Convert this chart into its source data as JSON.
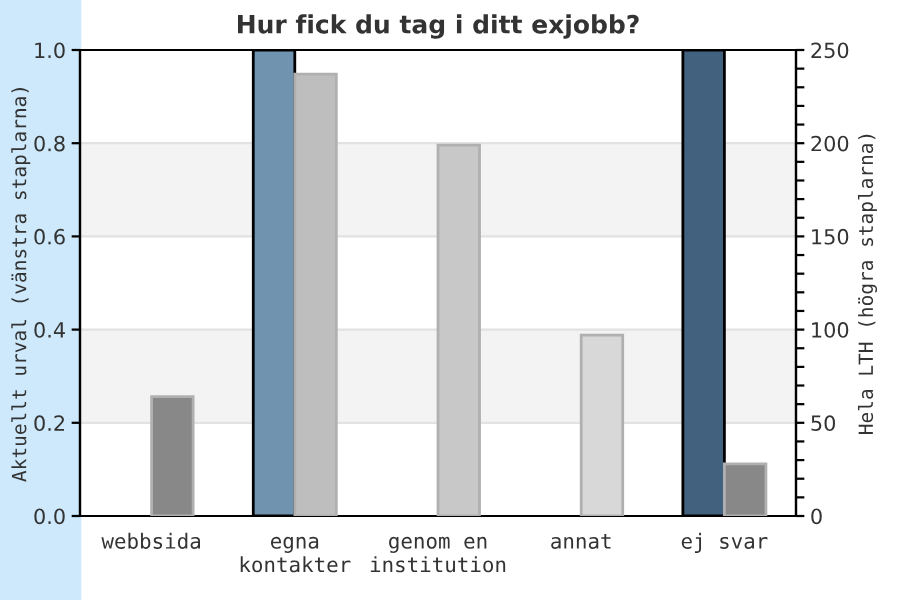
{
  "chart_data": {
    "type": "bar",
    "title": "Hur fick du tag i ditt exjobb?",
    "categories": [
      "webbsida",
      "egna\nkontakter",
      "genom en\ninstitution",
      "annat",
      "ej svar"
    ],
    "ylabel": "Aktuellt urval (vänstra staplarna)",
    "y2label": "Hela LTH (högra staplarna)",
    "series": [
      {
        "colors": [
          "#7094b0",
          "#7094b0",
          "#7094b0",
          "#7094b0",
          "#42617e"
        ],
        "values": [
          null,
          1,
          null,
          null,
          1
        ]
      },
      {
        "axis": "y2",
        "colors": [
          "#888888",
          "#bebebe",
          "#c8c8c8",
          "#d8d8d8",
          "#888888"
        ],
        "values": [
          64,
          237,
          199,
          97,
          28
        ]
      }
    ],
    "ylim": [
      0,
      1
    ],
    "yticks": [
      {
        "value": 0,
        "label": "0.0"
      },
      0.2,
      0.4,
      0.6,
      0.8,
      {
        "value": 1,
        "label": "1.0"
      }
    ],
    "y2lim": [
      0,
      250
    ],
    "y2ticks": [
      0,
      {
        "value": 10,
        "label": null
      },
      {
        "value": 20,
        "label": null
      },
      {
        "value": 30,
        "label": null
      },
      {
        "value": 40,
        "label": null
      },
      50,
      {
        "value": 60,
        "label": null
      },
      {
        "value": 70,
        "label": null
      },
      {
        "value": 80,
        "label": null
      },
      {
        "value": 90,
        "label": null
      },
      100,
      {
        "value": 110,
        "label": null
      },
      {
        "value": 120,
        "label": null
      },
      {
        "value": 130,
        "label": null
      },
      {
        "value": 140,
        "label": null
      },
      150,
      {
        "value": 160,
        "label": null
      },
      {
        "value": 170,
        "label": null
      },
      {
        "value": 180,
        "label": null
      },
      {
        "value": 190,
        "label": null
      },
      200,
      {
        "value": 210,
        "label": null
      },
      {
        "value": 220,
        "label": null
      },
      {
        "value": 230,
        "label": null
      },
      {
        "value": 240,
        "label": null
      },
      250
    ],
    "grid": "y",
    "legend": false
  }
}
